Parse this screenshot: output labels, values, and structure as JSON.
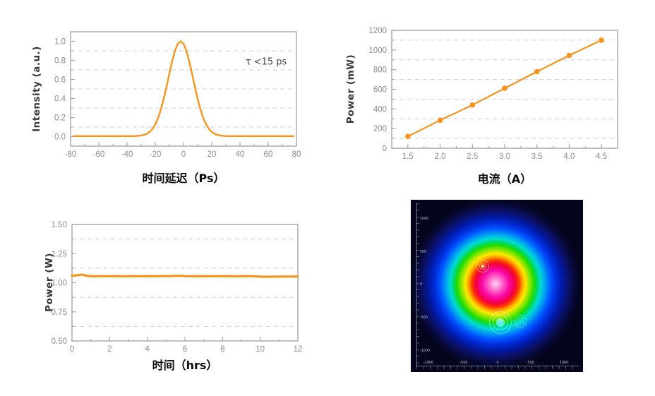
{
  "accent_color": "#F7941E",
  "chart_data": [
    {
      "id": "autocorrelation",
      "type": "line",
      "xlabel": "时间延迟（Ps）",
      "ylabel": "Intensity (a.u.)",
      "annotation": "τ <15 ps",
      "xlim": [
        -80,
        80
      ],
      "ylim": [
        -0.1,
        1.1
      ],
      "xticks": [
        -80,
        -60,
        -40,
        -20,
        0,
        20,
        40,
        60,
        80
      ],
      "xtick_labels": [
        "-80",
        "-60",
        "-40",
        "-20",
        "0",
        "20",
        "40",
        "60",
        "80"
      ],
      "yticks": [
        0.0,
        0.2,
        0.4,
        0.6,
        0.8,
        1.0
      ],
      "ytick_labels": [
        "0.0",
        "0.2",
        "0.4",
        "0.6",
        "0.8",
        "1.0"
      ],
      "grid_y": [
        0.1,
        0.3,
        0.5,
        0.7,
        0.9
      ],
      "x_minor": 10,
      "y_minor": 0.1,
      "grid": true,
      "legend": "none",
      "series": [
        {
          "name": "pulse-intensity",
          "color": "#F7941E",
          "width": 2.4,
          "marker": false,
          "points": [
            [
              -78,
              0.005
            ],
            [
              -74,
              0.005
            ],
            [
              -70,
              0.005
            ],
            [
              -66,
              0.005
            ],
            [
              -62,
              0.005
            ],
            [
              -58,
              0.005
            ],
            [
              -54,
              0.005
            ],
            [
              -50,
              0.005
            ],
            [
              -46,
              0.005
            ],
            [
              -42,
              0.005
            ],
            [
              -38,
              0.005
            ],
            [
              -34,
              0.006
            ],
            [
              -30,
              0.011
            ],
            [
              -28,
              0.018
            ],
            [
              -26,
              0.029
            ],
            [
              -24,
              0.049
            ],
            [
              -22,
              0.08
            ],
            [
              -20,
              0.129
            ],
            [
              -18,
              0.196
            ],
            [
              -16,
              0.286
            ],
            [
              -14,
              0.398
            ],
            [
              -12,
              0.526
            ],
            [
              -10,
              0.663
            ],
            [
              -8,
              0.794
            ],
            [
              -6,
              0.902
            ],
            [
              -4,
              0.975
            ],
            [
              -2,
              1.0
            ],
            [
              0,
              0.975
            ],
            [
              2,
              0.902
            ],
            [
              4,
              0.794
            ],
            [
              6,
              0.663
            ],
            [
              8,
              0.526
            ],
            [
              10,
              0.398
            ],
            [
              12,
              0.286
            ],
            [
              14,
              0.196
            ],
            [
              16,
              0.129
            ],
            [
              18,
              0.08
            ],
            [
              20,
              0.049
            ],
            [
              22,
              0.029
            ],
            [
              24,
              0.018
            ],
            [
              26,
              0.011
            ],
            [
              28,
              0.008
            ],
            [
              30,
              0.006
            ],
            [
              34,
              0.005
            ],
            [
              38,
              0.005
            ],
            [
              42,
              0.005
            ],
            [
              46,
              0.005
            ],
            [
              50,
              0.005
            ],
            [
              54,
              0.005
            ],
            [
              58,
              0.005
            ],
            [
              62,
              0.005
            ],
            [
              66,
              0.005
            ],
            [
              70,
              0.005
            ],
            [
              74,
              0.005
            ],
            [
              78,
              0.005
            ]
          ]
        }
      ]
    },
    {
      "id": "power-current",
      "type": "line",
      "xlabel": "电流（A）",
      "ylabel": "Power (mW)",
      "xlim": [
        1.25,
        4.75
      ],
      "ylim": [
        0,
        1200
      ],
      "xticks": [
        1.5,
        2.0,
        2.5,
        3.0,
        3.5,
        4.0,
        4.5
      ],
      "xtick_labels": [
        "1.5",
        "2.0",
        "2.5",
        "3.0",
        "3.5",
        "4.0",
        "4.5"
      ],
      "yticks": [
        0,
        200,
        400,
        600,
        800,
        1000,
        1200
      ],
      "ytick_labels": [
        "0",
        "200",
        "400",
        "600",
        "800",
        "1000",
        "1200"
      ],
      "grid_y": [
        100,
        300,
        500,
        700,
        900,
        1100
      ],
      "x_minor": 0.25,
      "y_minor": 100,
      "grid": true,
      "legend": "none",
      "series": [
        {
          "name": "output-power",
          "color": "#F7941E",
          "width": 2.2,
          "marker": true,
          "marker_r": 3.8,
          "points": [
            [
              1.5,
              120
            ],
            [
              2.0,
              285
            ],
            [
              2.5,
              440
            ],
            [
              3.0,
              610
            ],
            [
              3.5,
              780
            ],
            [
              4.0,
              945
            ],
            [
              4.5,
              1100
            ]
          ]
        }
      ]
    },
    {
      "id": "power-stability",
      "type": "line",
      "xlabel": "时间（hrs）",
      "ylabel": "Power (W)",
      "xlim": [
        0,
        12
      ],
      "ylim": [
        0.5,
        1.5
      ],
      "xticks": [
        0,
        2,
        4,
        6,
        8,
        10,
        12
      ],
      "xtick_labels": [
        "0",
        "2",
        "4",
        "6",
        "8",
        "10",
        "12"
      ],
      "yticks": [
        0.5,
        0.75,
        1.0,
        1.25,
        1.5
      ],
      "ytick_labels": [
        "0.50",
        "0.75",
        "1.00",
        "1.25",
        "1.50"
      ],
      "grid_y": [
        0.625,
        0.875,
        1.125,
        1.375
      ],
      "x_minor": 1,
      "y_minor": 0.125,
      "grid": true,
      "legend": "none",
      "series": [
        {
          "name": "power-vs-time",
          "color": "#F7941E",
          "width": 3.2,
          "marker": false,
          "points": [
            [
              0,
              1.06
            ],
            [
              0.15,
              1.061
            ],
            [
              0.3,
              1.064
            ],
            [
              0.45,
              1.068
            ],
            [
              0.55,
              1.069
            ],
            [
              0.65,
              1.066
            ],
            [
              0.75,
              1.06
            ],
            [
              0.9,
              1.057
            ],
            [
              1.2,
              1.056
            ],
            [
              1.6,
              1.057
            ],
            [
              2,
              1.056
            ],
            [
              2.4,
              1.057
            ],
            [
              2.8,
              1.056
            ],
            [
              3.2,
              1.057
            ],
            [
              3.6,
              1.056
            ],
            [
              4,
              1.057
            ],
            [
              4.4,
              1.056
            ],
            [
              4.8,
              1.057
            ],
            [
              5.2,
              1.057
            ],
            [
              5.5,
              1.059
            ],
            [
              5.8,
              1.06
            ],
            [
              6,
              1.057
            ],
            [
              6.4,
              1.056
            ],
            [
              6.8,
              1.057
            ],
            [
              7.2,
              1.056
            ],
            [
              7.6,
              1.057
            ],
            [
              8,
              1.056
            ],
            [
              8.4,
              1.057
            ],
            [
              8.8,
              1.056
            ],
            [
              9.2,
              1.057
            ],
            [
              9.6,
              1.056
            ],
            [
              10,
              1.052
            ],
            [
              10.4,
              1.051
            ],
            [
              10.8,
              1.052
            ],
            [
              11.2,
              1.053
            ],
            [
              11.6,
              1.053
            ],
            [
              12,
              1.054
            ]
          ]
        }
      ]
    },
    {
      "id": "beam-profile",
      "type": "heatmap",
      "description": "far-field laser beam profile, rainbow colormap, circular Gaussian spot",
      "x_tick_labels": [
        "-1000",
        "-500",
        "0",
        "500",
        "1000"
      ],
      "y_tick_labels": [
        "1000",
        "500",
        "0",
        "-500",
        "-1000"
      ],
      "palette": [
        "#ffd8f4",
        "#fa06a8",
        "#f2003c",
        "#ff9e00",
        "#ffe800",
        "#1ddc00",
        "#00dcd2",
        "#0057ff",
        "#0030e0",
        "#04051c"
      ]
    }
  ],
  "beam_labels": {
    "y": [
      "1000",
      "500",
      "0",
      "-500",
      "-1000"
    ],
    "x": [
      "-1000",
      "-500",
      "0",
      "500",
      "1000"
    ]
  }
}
